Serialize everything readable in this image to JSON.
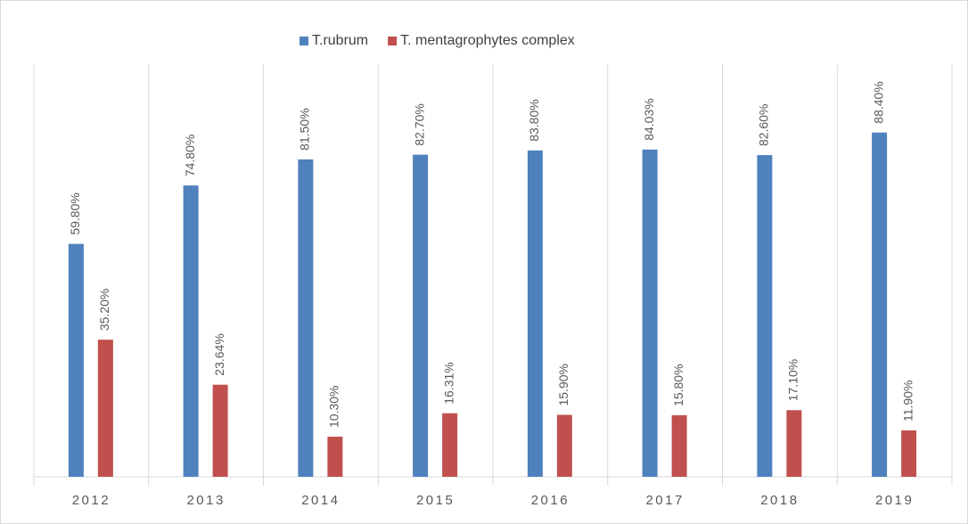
{
  "chart_data": {
    "type": "bar",
    "categories": [
      "2012",
      "2013",
      "2014",
      "2015",
      "2016",
      "2017",
      "2018",
      "2019"
    ],
    "series": [
      {
        "name": "T.rubrum",
        "color": "#4f81bd",
        "values": [
          59.8,
          74.8,
          81.5,
          82.7,
          83.8,
          84.03,
          82.6,
          88.4
        ],
        "value_labels": [
          "59.80%",
          "74.80%",
          "81.50%",
          "82.70%",
          "83.80%",
          "84.03%",
          "82.60%",
          "88.40%"
        ]
      },
      {
        "name": "T. mentagrophytes complex",
        "color": "#c0504d",
        "values": [
          35.2,
          23.64,
          10.3,
          16.31,
          15.9,
          15.8,
          17.1,
          11.9
        ],
        "value_labels": [
          "35.20%",
          "23.64%",
          "10.30%",
          "16.31%",
          "15.90%",
          "15.80%",
          "17.10%",
          "11.90%"
        ]
      }
    ],
    "ylim": [
      0,
      100
    ],
    "legend": "top"
  }
}
